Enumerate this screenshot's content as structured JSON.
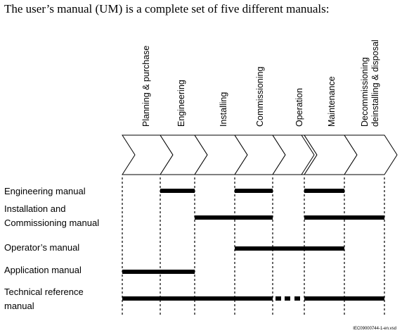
{
  "title": "The user’s manual (UM) is a complete set of five different manuals:",
  "phases": [
    [
      "Planning & purchase"
    ],
    [
      "Engineering"
    ],
    [
      "Installing"
    ],
    [
      "Commissioning"
    ],
    [
      "Operation"
    ],
    [
      "Maintenance"
    ],
    [
      "Decommissioning",
      "deinstalling & disposal"
    ]
  ],
  "manuals": [
    {
      "label_lines": [
        "Engineering manual"
      ]
    },
    {
      "label_lines": [
        "Installation and",
        "Commissioning manual"
      ]
    },
    {
      "label_lines": [
        "Operator’s manual"
      ]
    },
    {
      "label_lines": [
        "Application manual"
      ]
    },
    {
      "label_lines": [
        "Technical reference",
        "manual"
      ]
    }
  ],
  "file_id": "IEC09000744-1-en.vsd"
}
